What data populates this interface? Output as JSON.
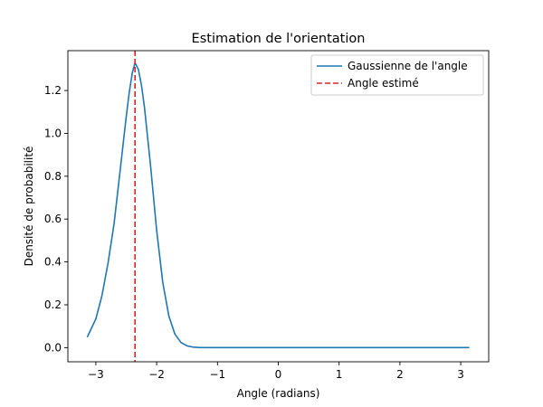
{
  "chart_data": {
    "type": "line",
    "title": "Estimation de l'orientation",
    "xlabel": "Angle (radians)",
    "ylabel": "Densité de probabilité",
    "xlim": [
      -3.46,
      3.46
    ],
    "ylim": [
      -0.066,
      1.386
    ],
    "xticks": [
      -3,
      -2,
      -1,
      0,
      1,
      2,
      3
    ],
    "xtick_labels": [
      "−3",
      "−2",
      "−1",
      "0",
      "1",
      "2",
      "3"
    ],
    "yticks": [
      0.0,
      0.2,
      0.4,
      0.6,
      0.8,
      1.0,
      1.2
    ],
    "ytick_labels": [
      "0.0",
      "0.2",
      "0.4",
      "0.6",
      "0.8",
      "1.0",
      "1.2"
    ],
    "grid": false,
    "legend_position": "top-right",
    "series": [
      {
        "name": "Gaussienne de l'angle",
        "color": "#1f77b4",
        "style": "solid",
        "x": [
          -3.14159,
          -3.0,
          -2.9,
          -2.8,
          -2.7,
          -2.6,
          -2.5,
          -2.45,
          -2.4,
          -2.356,
          -2.3,
          -2.25,
          -2.2,
          -2.1,
          -2.0,
          -1.9,
          -1.8,
          -1.7,
          -1.6,
          -1.5,
          -1.4,
          -1.3,
          -1.2,
          -1.0,
          -0.5,
          0.0,
          0.5,
          1.0,
          1.5,
          2.0,
          2.5,
          3.0,
          3.14159
        ],
        "y": [
          0.049,
          0.134,
          0.242,
          0.394,
          0.579,
          0.828,
          1.079,
          1.193,
          1.283,
          1.33,
          1.297,
          1.225,
          1.12,
          0.848,
          0.547,
          0.305,
          0.148,
          0.063,
          0.024,
          0.0082,
          0.0025,
          0.0007,
          0.0002,
          0.0,
          0.0,
          0.0,
          0.0,
          0.0,
          0.0,
          0.0,
          0.0,
          0.0,
          0.0
        ]
      },
      {
        "name": "Angle estimé",
        "color": "#d62728",
        "style": "dashed",
        "type": "vline",
        "x_value": -2.356
      }
    ]
  }
}
